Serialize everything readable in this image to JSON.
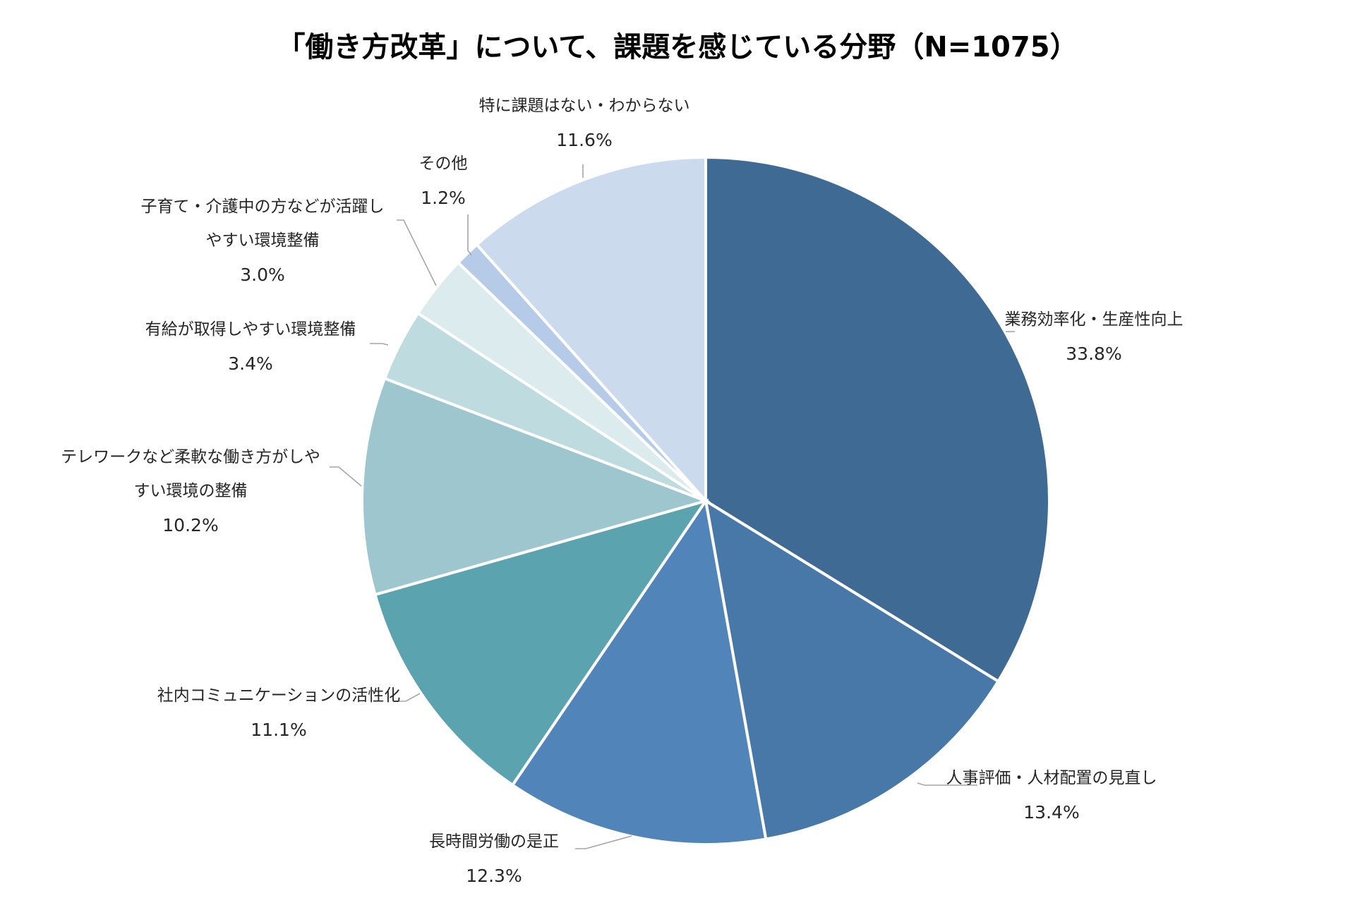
{
  "chart_data": {
    "type": "pie",
    "title": "「働き方改革」について、課題を感じている分野（N=1075）",
    "start_angle_deg": 0,
    "direction": "clockwise",
    "slices": [
      {
        "label_lines": [
          "業務効率化・生産性向上"
        ],
        "value": 33.8,
        "value_label": "33.8%",
        "color": "#3e6a93"
      },
      {
        "label_lines": [
          "人事評価・人材配置の見直し"
        ],
        "value": 13.4,
        "value_label": "13.4%",
        "color": "#4878a8"
      },
      {
        "label_lines": [
          "長時間労働の是正"
        ],
        "value": 12.3,
        "value_label": "12.3%",
        "color": "#5184b8"
      },
      {
        "label_lines": [
          "社内コミュニケーションの活性化"
        ],
        "value": 11.1,
        "value_label": "11.1%",
        "color": "#5ba3ae"
      },
      {
        "label_lines": [
          "テレワークなど柔軟な働き方がしや",
          "すい環境の整備"
        ],
        "value": 10.2,
        "value_label": "10.2%",
        "color": "#9ec6ce"
      },
      {
        "label_lines": [
          "有給が取得しやすい環境整備"
        ],
        "value": 3.4,
        "value_label": "3.4%",
        "color": "#bedbe0"
      },
      {
        "label_lines": [
          "子育て・介護中の方などが活躍し",
          "やすい環境整備"
        ],
        "value": 3.0,
        "value_label": "3.0%",
        "color": "#dcebee"
      },
      {
        "label_lines": [
          "その他"
        ],
        "value": 1.2,
        "value_label": "1.2%",
        "color": "#b6cbe7"
      },
      {
        "label_lines": [
          "特に課題はない・わからない"
        ],
        "value": 11.6,
        "value_label": "11.6%",
        "color": "#cbdaec"
      }
    ]
  }
}
